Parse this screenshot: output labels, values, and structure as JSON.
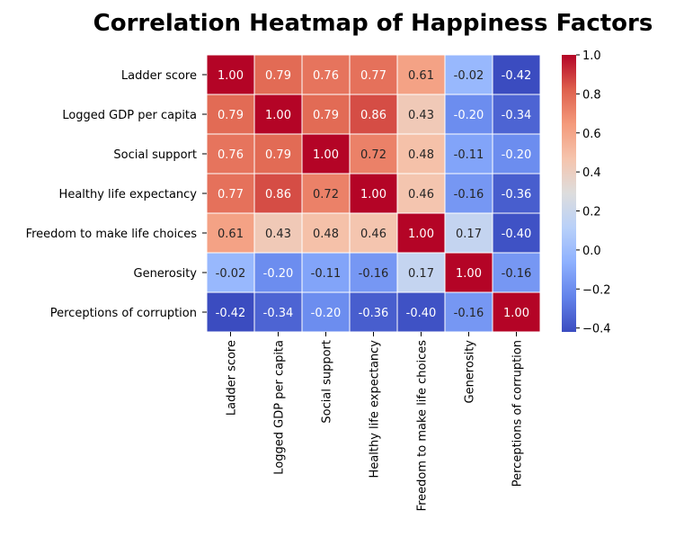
{
  "chart_data": {
    "type": "heatmap",
    "title": "Correlation Heatmap of Happiness Factors",
    "row_labels": [
      "Ladder score",
      "Logged GDP per capita",
      "Social support",
      "Healthy life expectancy",
      "Freedom to make life choices",
      "Generosity",
      "Perceptions of corruption"
    ],
    "col_labels": [
      "Ladder score",
      "Logged GDP per capita",
      "Social support",
      "Healthy life expectancy",
      "Freedom to make life choices",
      "Generosity",
      "Perceptions of corruption"
    ],
    "values": [
      [
        1.0,
        0.79,
        0.76,
        0.77,
        0.61,
        -0.02,
        -0.42
      ],
      [
        0.79,
        1.0,
        0.79,
        0.86,
        0.43,
        -0.2,
        -0.34
      ],
      [
        0.76,
        0.79,
        1.0,
        0.72,
        0.48,
        -0.11,
        -0.2
      ],
      [
        0.77,
        0.86,
        0.72,
        1.0,
        0.46,
        -0.16,
        -0.36
      ],
      [
        0.61,
        0.43,
        0.48,
        0.46,
        1.0,
        0.17,
        -0.4
      ],
      [
        -0.02,
        -0.2,
        -0.11,
        -0.16,
        0.17,
        1.0,
        -0.16
      ],
      [
        -0.42,
        -0.34,
        -0.2,
        -0.36,
        -0.4,
        -0.16,
        1.0
      ]
    ],
    "value_format": "0.00",
    "colormap": "coolwarm",
    "colorbar": {
      "min": -0.42,
      "max": 1.0,
      "ticks": [
        1.0,
        0.8,
        0.6,
        0.4,
        0.2,
        0.0,
        -0.2,
        -0.4
      ],
      "tick_labels": [
        "1.0",
        "0.8",
        "0.6",
        "0.4",
        "0.2",
        "0.0",
        "−0.2",
        "−0.4"
      ]
    },
    "cell_border_color": "#ffffff",
    "grid": false
  }
}
